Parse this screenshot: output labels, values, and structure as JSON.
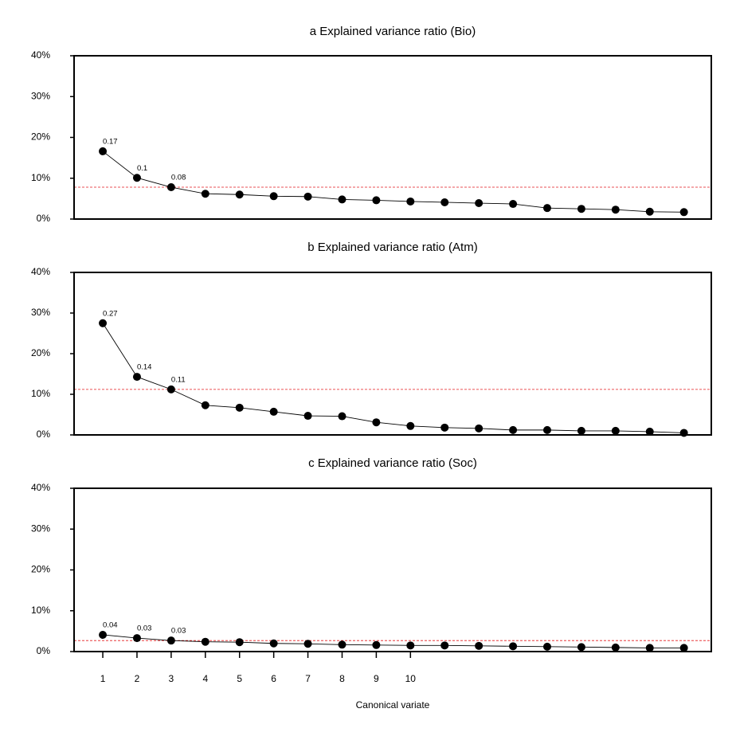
{
  "chart_data": [
    {
      "type": "line",
      "title": "a Explained variance ratio (Bio)",
      "x": [
        1,
        2,
        3,
        4,
        5,
        6,
        7,
        8,
        9,
        10,
        11,
        12,
        13,
        14,
        15,
        16,
        17,
        18
      ],
      "values": [
        16.6,
        10.1,
        7.8,
        6.2,
        6.0,
        5.6,
        5.5,
        4.8,
        4.6,
        4.3,
        4.1,
        3.9,
        3.7,
        2.7,
        2.5,
        2.3,
        1.8,
        1.7
      ],
      "value_labels": [
        "0.17",
        "0.1",
        "0.08",
        null,
        null,
        null,
        null,
        null,
        null,
        null,
        null,
        null,
        null,
        null,
        null,
        null,
        null,
        null
      ],
      "color": "#000000",
      "xlim": [
        0.16,
        18.8
      ],
      "ylim": [
        0,
        40
      ],
      "yticks": [
        {
          "value": 0,
          "label": "0%"
        },
        {
          "value": 10,
          "label": "10%"
        },
        {
          "value": 20,
          "label": "20%"
        },
        {
          "value": 30,
          "label": "30%"
        },
        {
          "value": 40,
          "label": "40%"
        }
      ],
      "hline": 7.8,
      "hline_color": "#e41a1c"
    },
    {
      "type": "line",
      "title": "b Explained variance ratio (Atm)",
      "x": [
        1,
        2,
        3,
        4,
        5,
        6,
        7,
        8,
        9,
        10,
        11,
        12,
        13,
        14,
        15,
        16,
        17,
        18
      ],
      "values": [
        27.5,
        14.3,
        11.2,
        7.3,
        6.7,
        5.7,
        4.7,
        4.6,
        3.1,
        2.2,
        1.8,
        1.6,
        1.2,
        1.2,
        1.0,
        1.0,
        0.8,
        0.5
      ],
      "value_labels": [
        "0.27",
        "0.14",
        "0.11",
        null,
        null,
        null,
        null,
        null,
        null,
        null,
        null,
        null,
        null,
        null,
        null,
        null,
        null,
        null
      ],
      "color": "#000000",
      "xlim": [
        0.16,
        18.8
      ],
      "ylim": [
        0,
        40
      ],
      "yticks": [
        {
          "value": 0,
          "label": "0%"
        },
        {
          "value": 10,
          "label": "10%"
        },
        {
          "value": 20,
          "label": "20%"
        },
        {
          "value": 30,
          "label": "30%"
        },
        {
          "value": 40,
          "label": "40%"
        }
      ],
      "hline": 11.2,
      "hline_color": "#e41a1c"
    },
    {
      "type": "line",
      "title": "c Explained variance ratio (Soc)",
      "x_label": "Canonical variate",
      "x": [
        1,
        2,
        3,
        4,
        5,
        6,
        7,
        8,
        9,
        10,
        11,
        12,
        13,
        14,
        15,
        16,
        17,
        18
      ],
      "values": [
        4.1,
        3.3,
        2.7,
        2.4,
        2.3,
        2.0,
        1.9,
        1.7,
        1.6,
        1.5,
        1.5,
        1.4,
        1.3,
        1.2,
        1.1,
        1.0,
        0.9,
        0.9
      ],
      "value_labels": [
        "0.04",
        "0.03",
        "0.03",
        null,
        null,
        null,
        null,
        null,
        null,
        null,
        null,
        null,
        null,
        null,
        null,
        null,
        null,
        null
      ],
      "color": "#000000",
      "xlim": [
        0.16,
        18.8
      ],
      "ylim": [
        0,
        40
      ],
      "xticks": [
        1,
        2,
        3,
        4,
        5,
        6,
        7,
        8,
        9,
        10
      ],
      "yticks": [
        {
          "value": 0,
          "label": "0%"
        },
        {
          "value": 10,
          "label": "10%"
        },
        {
          "value": 20,
          "label": "20%"
        },
        {
          "value": 30,
          "label": "30%"
        },
        {
          "value": 40,
          "label": "40%"
        }
      ],
      "hline": 2.7,
      "hline_color": "#e41a1c"
    }
  ]
}
